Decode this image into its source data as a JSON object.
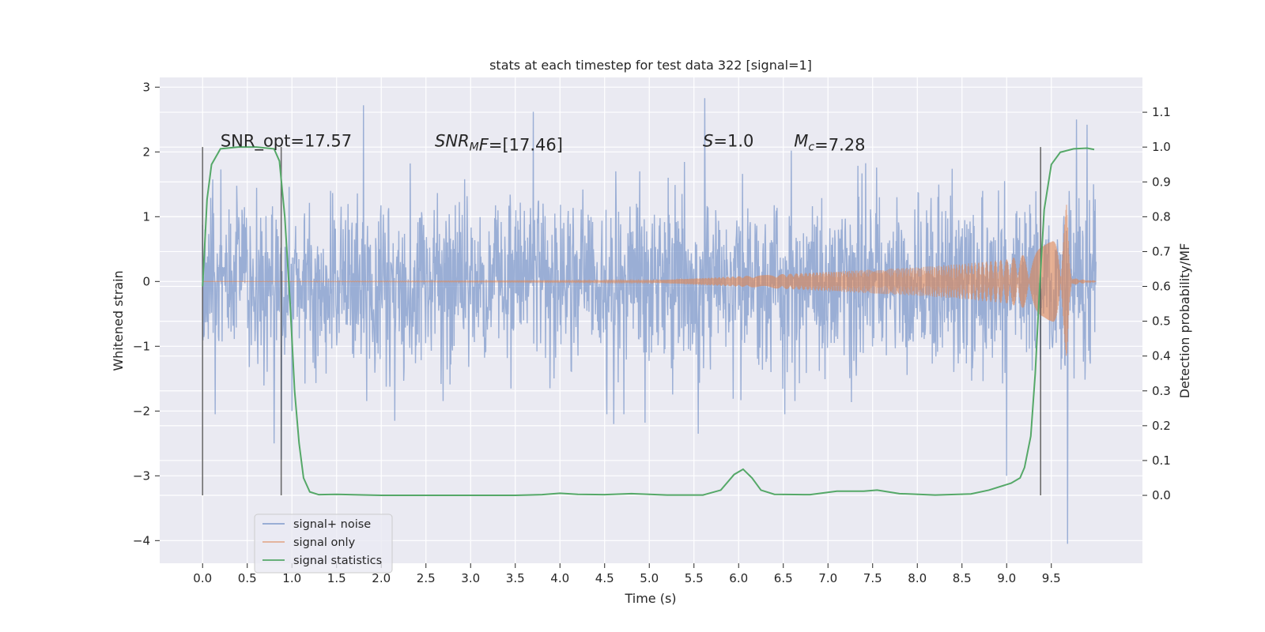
{
  "chart_data": {
    "type": "line",
    "title": "stats at each timestep for test data 322 [signal=1]",
    "xlabel": "Time (s)",
    "ylabel": "Whitened strain",
    "y2label": "Detection probability/MF",
    "xlim": [
      -0.48,
      10.52
    ],
    "ylim": [
      -4.35,
      3.15
    ],
    "y2lim": [
      -0.195,
      1.2
    ],
    "xticks": [
      "0.0",
      "0.5",
      "1.0",
      "1.5",
      "2.0",
      "2.5",
      "3.0",
      "3.5",
      "4.0",
      "4.5",
      "5.0",
      "5.5",
      "6.0",
      "6.5",
      "7.0",
      "7.5",
      "8.0",
      "8.5",
      "9.0",
      "9.5"
    ],
    "yticks": [
      "3",
      "2",
      "1",
      "0",
      "−1",
      "−2",
      "−3",
      "−4"
    ],
    "y2ticks": [
      "1.1",
      "1.0",
      "0.9",
      "0.8",
      "0.7",
      "0.6",
      "0.5",
      "0.4",
      "0.3",
      "0.2",
      "0.1",
      "0.0"
    ],
    "grid": true,
    "legend_position": "lower-left",
    "colors": {
      "background": "#eaeaf2",
      "noise": "#7f9acb",
      "signal": "#dd8452",
      "statistics": "#55a868",
      "vline": "#555555"
    },
    "annotations": [
      {
        "x": 0.2,
        "y": 2.08,
        "parts": [
          {
            "t": "SNR_opt=17.57"
          }
        ]
      },
      {
        "x": 2.6,
        "y": 2.08,
        "parts": [
          {
            "t": "SNR",
            "i": true
          },
          {
            "t": "M",
            "i": true,
            "sub": true
          },
          {
            "t": "F",
            "i": true
          },
          {
            "t": "=[17.46]"
          }
        ]
      },
      {
        "x": 5.6,
        "y": 2.08,
        "parts": [
          {
            "t": "S",
            "i": true
          },
          {
            "t": "=1.0"
          }
        ]
      },
      {
        "x": 6.62,
        "y": 2.08,
        "parts": [
          {
            "t": "M",
            "i": true
          },
          {
            "t": "c",
            "i": true,
            "sub": true
          },
          {
            "t": "=7.28"
          }
        ]
      }
    ],
    "vlines": [
      0.0,
      0.88,
      9.38
    ],
    "vline_range": [
      0.0,
      1.0
    ],
    "series": [
      {
        "name": "signal+ noise",
        "kind": "noise",
        "duration": 10.0,
        "typical_amplitude": 1.1,
        "peaks": [
          [
            1.8,
            2.72
          ],
          [
            3.7,
            2.62
          ],
          [
            5.62,
            2.83
          ],
          [
            5.55,
            -2.35
          ],
          [
            4.6,
            -2.2
          ],
          [
            4.95,
            -2.18
          ],
          [
            9.0,
            -3.0
          ],
          [
            9.68,
            -4.05
          ],
          [
            9.78,
            2.5
          ],
          [
            9.9,
            2.42
          ],
          [
            0.8,
            -2.5
          ],
          [
            0.88,
            -2.75
          ],
          [
            2.15,
            -2.15
          ],
          [
            1.0,
            -2.0
          ]
        ]
      },
      {
        "name": "signal only",
        "kind": "chirp",
        "envelope": [
          [
            0.0,
            0.0
          ],
          [
            5.0,
            0.015
          ],
          [
            6.0,
            0.08
          ],
          [
            7.0,
            0.15
          ],
          [
            8.0,
            0.22
          ],
          [
            8.5,
            0.27
          ],
          [
            9.0,
            0.34
          ],
          [
            9.3,
            0.45
          ],
          [
            9.5,
            0.62
          ],
          [
            9.6,
            0.85
          ],
          [
            9.67,
            1.2
          ],
          [
            9.7,
            0.4
          ],
          [
            9.75,
            0.05
          ],
          [
            10.0,
            0.0
          ]
        ]
      },
      {
        "name": "signal statistics",
        "kind": "line",
        "axis": "y2",
        "points": [
          [
            0.0,
            0.6
          ],
          [
            0.05,
            0.85
          ],
          [
            0.1,
            0.95
          ],
          [
            0.2,
            0.995
          ],
          [
            0.4,
            1.0
          ],
          [
            0.6,
            1.0
          ],
          [
            0.8,
            0.995
          ],
          [
            0.86,
            0.96
          ],
          [
            0.92,
            0.8
          ],
          [
            0.98,
            0.55
          ],
          [
            1.03,
            0.3
          ],
          [
            1.08,
            0.15
          ],
          [
            1.13,
            0.05
          ],
          [
            1.2,
            0.01
          ],
          [
            1.3,
            0.002
          ],
          [
            1.5,
            0.003
          ],
          [
            2.0,
            0.0
          ],
          [
            2.5,
            0.0
          ],
          [
            3.0,
            0.0
          ],
          [
            3.5,
            0.0
          ],
          [
            3.8,
            0.002
          ],
          [
            4.0,
            0.006
          ],
          [
            4.2,
            0.003
          ],
          [
            4.5,
            0.002
          ],
          [
            4.8,
            0.005
          ],
          [
            5.2,
            0.001
          ],
          [
            5.6,
            0.001
          ],
          [
            5.8,
            0.015
          ],
          [
            5.95,
            0.06
          ],
          [
            6.05,
            0.075
          ],
          [
            6.15,
            0.05
          ],
          [
            6.25,
            0.015
          ],
          [
            6.4,
            0.003
          ],
          [
            6.8,
            0.002
          ],
          [
            7.1,
            0.012
          ],
          [
            7.4,
            0.012
          ],
          [
            7.55,
            0.015
          ],
          [
            7.8,
            0.005
          ],
          [
            8.2,
            0.001
          ],
          [
            8.6,
            0.004
          ],
          [
            8.8,
            0.015
          ],
          [
            9.05,
            0.035
          ],
          [
            9.15,
            0.05
          ],
          [
            9.2,
            0.08
          ],
          [
            9.27,
            0.17
          ],
          [
            9.32,
            0.35
          ],
          [
            9.37,
            0.6
          ],
          [
            9.42,
            0.82
          ],
          [
            9.5,
            0.95
          ],
          [
            9.6,
            0.985
          ],
          [
            9.75,
            0.995
          ],
          [
            9.9,
            0.997
          ],
          [
            9.98,
            0.993
          ]
        ]
      }
    ]
  }
}
